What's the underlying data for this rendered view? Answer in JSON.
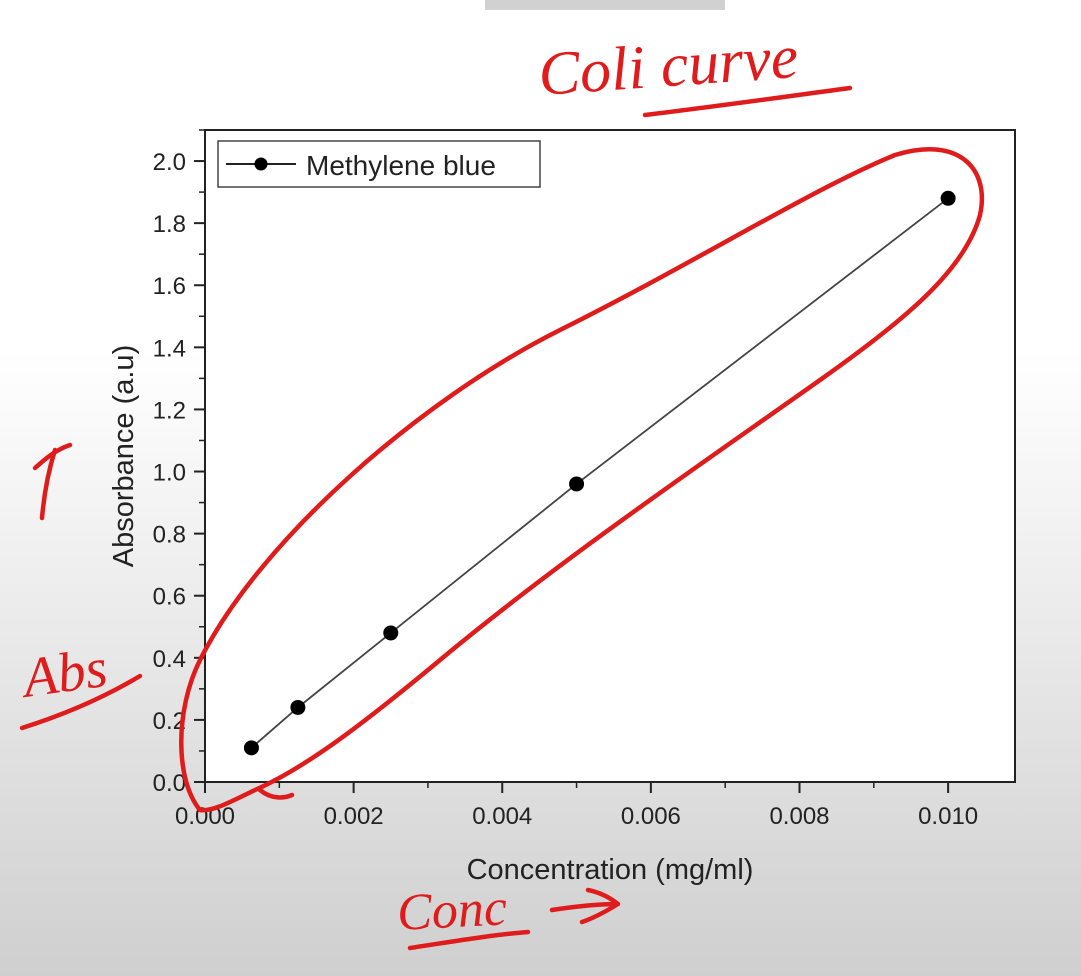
{
  "chart_data": {
    "type": "line",
    "title": "",
    "xlabel": "Concentration (mg/ml)",
    "ylabel": "Absorbance (a.u)",
    "xlim": [
      0.0,
      0.0109
    ],
    "ylim": [
      0.0,
      2.1
    ],
    "x_ticks": [
      0.0,
      0.002,
      0.004,
      0.006,
      0.008,
      0.01
    ],
    "x_tick_labels": [
      "0.000",
      "0.002",
      "0.004",
      "0.006",
      "0.008",
      "0.010"
    ],
    "y_ticks": [
      0.0,
      0.2,
      0.4,
      0.6,
      0.8,
      1.0,
      1.2,
      1.4,
      1.6,
      1.8,
      2.0
    ],
    "y_tick_labels": [
      "0.0",
      "0.2",
      "0.4",
      "0.6",
      "0.8",
      "1.0",
      "1.2",
      "1.4",
      "1.6",
      "1.8",
      "2.0"
    ],
    "grid": false,
    "legend_position": "top-left",
    "series": [
      {
        "name": "Methylene blue",
        "color": "#000000",
        "line_color": "#444444",
        "marker": "circle",
        "x": [
          0.000625,
          0.00125,
          0.0025,
          0.005,
          0.01
        ],
        "y": [
          0.11,
          0.24,
          0.48,
          0.96,
          1.88
        ]
      }
    ]
  },
  "annotations": {
    "color": "#e01b1b",
    "title_note": "Coli curve",
    "y_note": "Abs",
    "x_note": "Conc"
  }
}
